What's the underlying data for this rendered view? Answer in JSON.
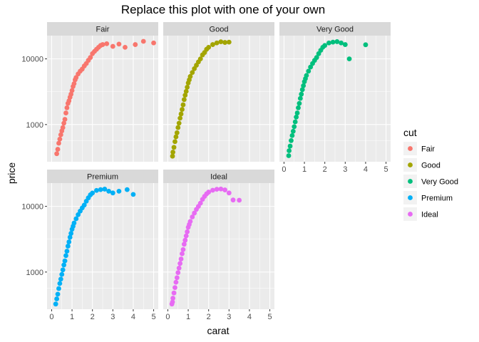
{
  "chart_data": {
    "type": "scatter",
    "title": "Replace this plot with one of your own",
    "xlabel": "carat",
    "ylabel": "price",
    "xlim": [
      0,
      5
    ],
    "xticks": [
      0,
      1,
      2,
      3,
      4,
      5
    ],
    "ylim": [
      326,
      18823
    ],
    "yscale": "log",
    "yticks": [
      1000,
      10000
    ],
    "ytick_labels": [
      "1000",
      "10000"
    ],
    "grid": true,
    "legend": {
      "title": "cut",
      "position": "right"
    },
    "facet_by": "cut",
    "colors": {
      "Fair": "#F8766D",
      "Good": "#A3A500",
      "Very Good": "#00BF7D",
      "Premium": "#00B0F6",
      "Ideal": "#E76BF3"
    },
    "series": [
      {
        "name": "Fair",
        "points": [
          [
            0.25,
            360
          ],
          [
            0.3,
            420
          ],
          [
            0.35,
            520
          ],
          [
            0.4,
            600
          ],
          [
            0.45,
            700
          ],
          [
            0.5,
            800
          ],
          [
            0.55,
            900
          ],
          [
            0.6,
            1050
          ],
          [
            0.65,
            1200
          ],
          [
            0.7,
            1500
          ],
          [
            0.75,
            1800
          ],
          [
            0.8,
            2100
          ],
          [
            0.85,
            2300
          ],
          [
            0.9,
            2600
          ],
          [
            0.95,
            2900
          ],
          [
            1.0,
            3300
          ],
          [
            1.05,
            3800
          ],
          [
            1.1,
            4200
          ],
          [
            1.15,
            4800
          ],
          [
            1.2,
            5200
          ],
          [
            1.3,
            5900
          ],
          [
            1.4,
            6500
          ],
          [
            1.5,
            7000
          ],
          [
            1.6,
            7800
          ],
          [
            1.7,
            8500
          ],
          [
            1.8,
            9500
          ],
          [
            1.9,
            10500
          ],
          [
            2.0,
            12000
          ],
          [
            2.1,
            13000
          ],
          [
            2.2,
            14000
          ],
          [
            2.3,
            15000
          ],
          [
            2.4,
            16000
          ],
          [
            2.5,
            16500
          ],
          [
            2.7,
            17000
          ],
          [
            3.0,
            15500
          ],
          [
            3.3,
            16800
          ],
          [
            3.6,
            15000
          ],
          [
            4.1,
            16500
          ],
          [
            4.5,
            18500
          ],
          [
            5.0,
            17500
          ]
        ]
      },
      {
        "name": "Good",
        "points": [
          [
            0.23,
            330
          ],
          [
            0.25,
            380
          ],
          [
            0.3,
            450
          ],
          [
            0.35,
            550
          ],
          [
            0.4,
            650
          ],
          [
            0.45,
            750
          ],
          [
            0.5,
            900
          ],
          [
            0.55,
            1050
          ],
          [
            0.6,
            1250
          ],
          [
            0.65,
            1450
          ],
          [
            0.7,
            1700
          ],
          [
            0.75,
            2000
          ],
          [
            0.8,
            2400
          ],
          [
            0.85,
            2800
          ],
          [
            0.9,
            3200
          ],
          [
            0.95,
            3700
          ],
          [
            1.0,
            4300
          ],
          [
            1.05,
            4800
          ],
          [
            1.1,
            5400
          ],
          [
            1.2,
            6200
          ],
          [
            1.3,
            7100
          ],
          [
            1.4,
            8000
          ],
          [
            1.5,
            9000
          ],
          [
            1.6,
            10000
          ],
          [
            1.7,
            11500
          ],
          [
            1.8,
            12500
          ],
          [
            1.9,
            14000
          ],
          [
            2.0,
            15000
          ],
          [
            2.2,
            16500
          ],
          [
            2.4,
            17500
          ],
          [
            2.6,
            18200
          ],
          [
            2.8,
            17800
          ],
          [
            3.0,
            18000
          ]
        ]
      },
      {
        "name": "Very Good",
        "points": [
          [
            0.23,
            336
          ],
          [
            0.25,
            400
          ],
          [
            0.3,
            470
          ],
          [
            0.35,
            570
          ],
          [
            0.4,
            680
          ],
          [
            0.45,
            790
          ],
          [
            0.5,
            930
          ],
          [
            0.55,
            1100
          ],
          [
            0.6,
            1300
          ],
          [
            0.65,
            1500
          ],
          [
            0.7,
            1800
          ],
          [
            0.75,
            2100
          ],
          [
            0.8,
            2500
          ],
          [
            0.85,
            2900
          ],
          [
            0.9,
            3400
          ],
          [
            0.95,
            3900
          ],
          [
            1.0,
            4500
          ],
          [
            1.05,
            5000
          ],
          [
            1.1,
            5600
          ],
          [
            1.2,
            6500
          ],
          [
            1.3,
            7500
          ],
          [
            1.4,
            8500
          ],
          [
            1.5,
            9500
          ],
          [
            1.6,
            10500
          ],
          [
            1.7,
            12000
          ],
          [
            1.8,
            13500
          ],
          [
            1.9,
            15000
          ],
          [
            2.0,
            16000
          ],
          [
            2.2,
            17500
          ],
          [
            2.4,
            18000
          ],
          [
            2.6,
            18300
          ],
          [
            2.8,
            17500
          ],
          [
            3.0,
            16500
          ],
          [
            3.2,
            10000
          ],
          [
            4.0,
            16400
          ]
        ]
      },
      {
        "name": "Premium",
        "points": [
          [
            0.2,
            326
          ],
          [
            0.25,
            390
          ],
          [
            0.3,
            460
          ],
          [
            0.35,
            560
          ],
          [
            0.4,
            670
          ],
          [
            0.45,
            780
          ],
          [
            0.5,
            920
          ],
          [
            0.55,
            1080
          ],
          [
            0.6,
            1280
          ],
          [
            0.65,
            1480
          ],
          [
            0.7,
            1780
          ],
          [
            0.75,
            2080
          ],
          [
            0.8,
            2480
          ],
          [
            0.85,
            2880
          ],
          [
            0.9,
            3380
          ],
          [
            0.95,
            3880
          ],
          [
            1.0,
            4480
          ],
          [
            1.05,
            4980
          ],
          [
            1.1,
            5580
          ],
          [
            1.2,
            6480
          ],
          [
            1.3,
            7480
          ],
          [
            1.4,
            8480
          ],
          [
            1.5,
            9480
          ],
          [
            1.6,
            10480
          ],
          [
            1.7,
            11980
          ],
          [
            1.8,
            13480
          ],
          [
            1.9,
            14980
          ],
          [
            2.0,
            15980
          ],
          [
            2.2,
            17480
          ],
          [
            2.4,
            18000
          ],
          [
            2.6,
            18300
          ],
          [
            2.8,
            17000
          ],
          [
            3.0,
            16000
          ],
          [
            3.3,
            17000
          ],
          [
            3.7,
            18000
          ],
          [
            4.0,
            15200
          ]
        ]
      },
      {
        "name": "Ideal",
        "points": [
          [
            0.2,
            326
          ],
          [
            0.23,
            350
          ],
          [
            0.25,
            400
          ],
          [
            0.3,
            480
          ],
          [
            0.35,
            580
          ],
          [
            0.4,
            700
          ],
          [
            0.45,
            820
          ],
          [
            0.5,
            980
          ],
          [
            0.55,
            1150
          ],
          [
            0.6,
            1350
          ],
          [
            0.65,
            1580
          ],
          [
            0.7,
            1900
          ],
          [
            0.75,
            2200
          ],
          [
            0.8,
            2650
          ],
          [
            0.85,
            3050
          ],
          [
            0.9,
            3550
          ],
          [
            0.95,
            4100
          ],
          [
            1.0,
            4800
          ],
          [
            1.05,
            5300
          ],
          [
            1.1,
            5900
          ],
          [
            1.2,
            6900
          ],
          [
            1.3,
            7900
          ],
          [
            1.4,
            9000
          ],
          [
            1.5,
            10000
          ],
          [
            1.6,
            11200
          ],
          [
            1.7,
            12800
          ],
          [
            1.8,
            14200
          ],
          [
            1.9,
            15500
          ],
          [
            2.0,
            16500
          ],
          [
            2.2,
            17600
          ],
          [
            2.4,
            18200
          ],
          [
            2.6,
            18400
          ],
          [
            2.8,
            17800
          ],
          [
            3.0,
            16000
          ],
          [
            3.2,
            12500
          ],
          [
            3.5,
            12400
          ]
        ]
      }
    ]
  }
}
